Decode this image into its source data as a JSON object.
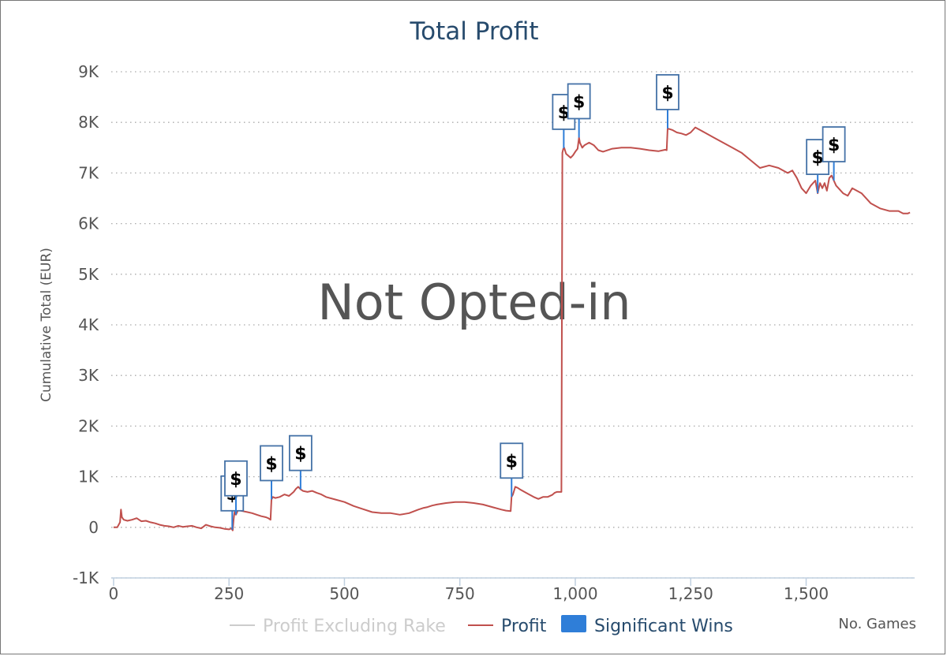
{
  "chart_data": {
    "type": "line",
    "title": "Total Profit",
    "xlabel": "No. Games",
    "ylabel": "Cumulative Total (EUR)",
    "watermark": "Not Opted-in",
    "xlim": [
      -5,
      1735
    ],
    "ylim": [
      -1000,
      9000
    ],
    "x_ticks": [
      0,
      250,
      500,
      750,
      1000,
      1250,
      1500
    ],
    "x_tick_labels": [
      "0",
      "250",
      "500",
      "750",
      "1,000",
      "1,250",
      "1,500"
    ],
    "y_ticks": [
      -1000,
      0,
      1000,
      2000,
      3000,
      4000,
      5000,
      6000,
      7000,
      8000,
      9000
    ],
    "y_tick_labels": [
      "-1K",
      "0",
      "1K",
      "2K",
      "3K",
      "4K",
      "5K",
      "6K",
      "7K",
      "8K",
      "9K"
    ],
    "grid": "horizontal-dotted",
    "legend_position": "bottom-center",
    "colors": {
      "title": "#274b6d",
      "profit": "#c0504d",
      "profit_excluding_rake": "#cccccc",
      "significant_wins": "#2f7ed8",
      "flag_border": "#4572a7",
      "watermark": "#555555",
      "axis_text": "#555555"
    },
    "series": [
      {
        "name": "Profit Excluding Rake",
        "hidden": true,
        "x": [],
        "y": []
      },
      {
        "name": "Profit",
        "x": [
          0,
          8,
          14,
          16,
          18,
          22,
          30,
          40,
          50,
          60,
          70,
          80,
          90,
          100,
          110,
          120,
          130,
          140,
          150,
          160,
          170,
          180,
          190,
          200,
          210,
          220,
          230,
          240,
          250,
          255,
          258,
          260,
          262,
          265,
          270,
          275,
          280,
          290,
          300,
          310,
          320,
          330,
          335,
          340,
          342,
          345,
          350,
          360,
          370,
          380,
          390,
          395,
          400,
          405,
          410,
          420,
          430,
          440,
          450,
          460,
          480,
          500,
          520,
          540,
          560,
          580,
          600,
          620,
          640,
          660,
          670,
          680,
          690,
          700,
          720,
          740,
          760,
          780,
          800,
          820,
          840,
          850,
          860,
          862,
          865,
          870,
          875,
          880,
          890,
          900,
          910,
          920,
          930,
          940,
          950,
          955,
          960,
          965,
          970,
          972,
          974,
          976,
          980,
          990,
          995,
          1000,
          1005,
          1008,
          1010,
          1015,
          1020,
          1030,
          1040,
          1050,
          1060,
          1080,
          1100,
          1120,
          1140,
          1160,
          1180,
          1195,
          1198,
          1200,
          1210,
          1220,
          1230,
          1240,
          1250,
          1260,
          1270,
          1280,
          1300,
          1320,
          1340,
          1360,
          1380,
          1400,
          1420,
          1440,
          1460,
          1470,
          1480,
          1490,
          1500,
          1510,
          1520,
          1525,
          1530,
          1535,
          1540,
          1545,
          1550,
          1555,
          1560,
          1565,
          1570,
          1580,
          1590,
          1600,
          1620,
          1640,
          1660,
          1680,
          1700,
          1710,
          1720,
          1725
        ],
        "y": [
          0,
          0,
          100,
          350,
          200,
          150,
          130,
          150,
          180,
          120,
          130,
          100,
          80,
          50,
          30,
          20,
          0,
          30,
          10,
          20,
          30,
          0,
          -20,
          50,
          20,
          0,
          -10,
          -30,
          -40,
          -20,
          -60,
          150,
          300,
          250,
          350,
          330,
          320,
          300,
          280,
          250,
          220,
          200,
          180,
          150,
          550,
          600,
          580,
          600,
          650,
          620,
          700,
          760,
          800,
          750,
          720,
          700,
          720,
          680,
          650,
          600,
          550,
          500,
          420,
          360,
          300,
          280,
          280,
          250,
          280,
          350,
          380,
          400,
          430,
          450,
          480,
          500,
          500,
          480,
          450,
          400,
          350,
          330,
          320,
          600,
          650,
          800,
          780,
          750,
          700,
          650,
          600,
          560,
          600,
          600,
          640,
          680,
          700,
          700,
          700,
          7400,
          7480,
          7500,
          7380,
          7300,
          7350,
          7420,
          7480,
          7700,
          7600,
          7500,
          7550,
          7600,
          7550,
          7450,
          7420,
          7480,
          7500,
          7500,
          7480,
          7450,
          7430,
          7460,
          7450,
          7880,
          7850,
          7800,
          7780,
          7750,
          7800,
          7900,
          7850,
          7800,
          7700,
          7600,
          7500,
          7400,
          7250,
          7100,
          7150,
          7100,
          7000,
          7050,
          6900,
          6700,
          6600,
          6750,
          6850,
          6600,
          6800,
          6700,
          6800,
          6650,
          6900,
          6950,
          6850,
          6750,
          6700,
          6600,
          6550,
          6700,
          6600,
          6400,
          6300,
          6250,
          6250,
          6200,
          6200,
          6220
        ]
      }
    ],
    "significant_wins": {
      "name": "Significant Wins",
      "label": "$",
      "x": [
        257,
        265,
        342,
        405,
        862,
        975,
        1008,
        1200,
        1525,
        1560
      ]
    }
  }
}
